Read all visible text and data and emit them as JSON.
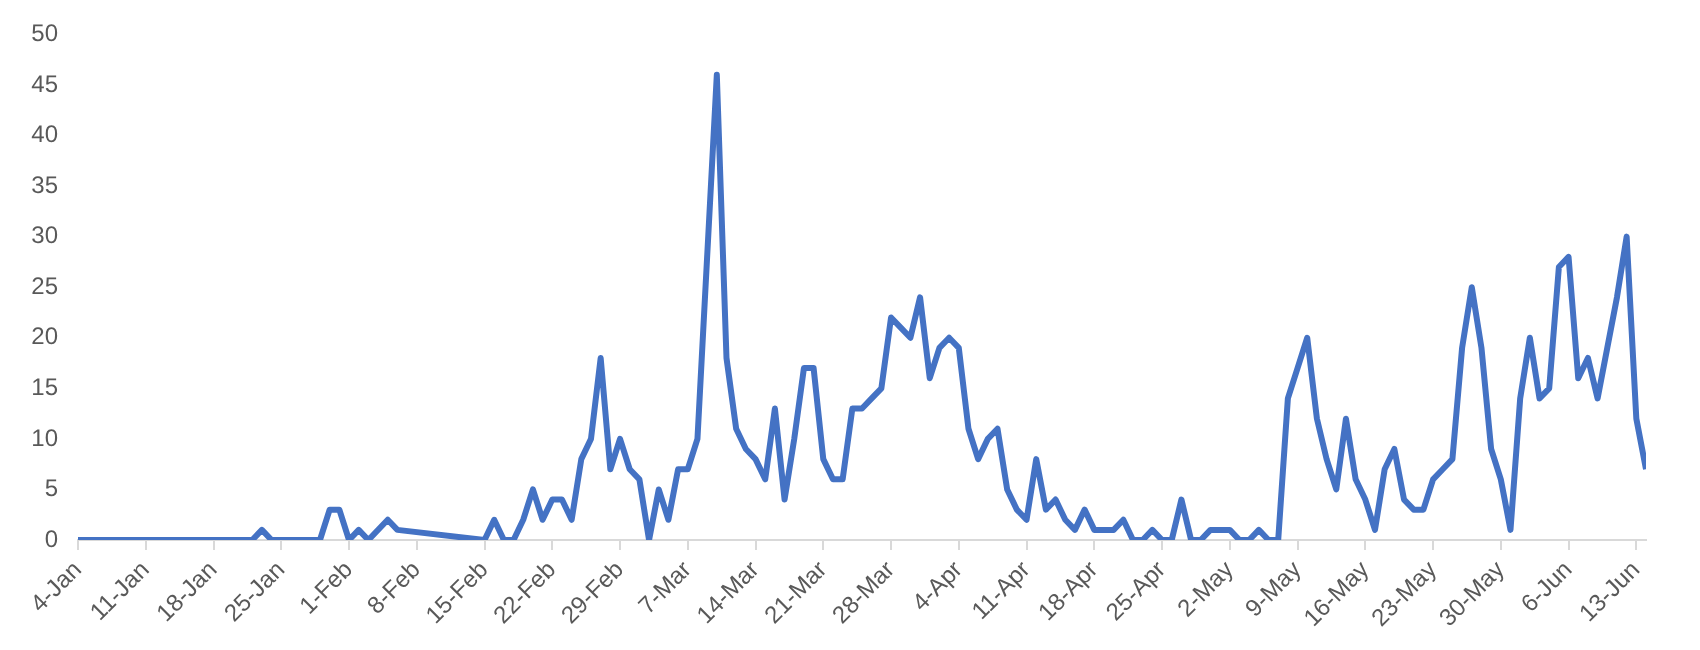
{
  "chart_data": {
    "type": "line",
    "color": "#4472c4",
    "marker": "none",
    "line_style": "solid",
    "grid": false,
    "legend": false,
    "x": [
      "--01-04",
      "--01-22",
      "--01-23",
      "--01-24",
      "--01-29",
      "--01-30",
      "--01-31",
      "--02-01",
      "--02-02",
      "--02-03",
      "--02-05",
      "--02-06",
      "--02-15",
      "--02-16",
      "--02-17",
      "--02-18",
      "--02-19",
      "--02-20",
      "--02-21",
      "--02-22",
      "--02-23",
      "--02-24",
      "--02-25",
      "--02-26",
      "--02-27",
      "--02-28",
      "--02-29",
      "--03-01",
      "--03-02",
      "--03-03",
      "--03-04",
      "--03-05",
      "--03-06",
      "--03-07",
      "--03-08",
      "--03-10",
      "--03-11",
      "--03-12",
      "--03-13",
      "--03-14",
      "--03-15",
      "--03-16",
      "--03-17",
      "--03-18",
      "--03-19",
      "--03-20",
      "--03-21",
      "--03-22",
      "--03-23",
      "--03-24",
      "--03-25",
      "--03-26",
      "--03-27",
      "--03-28",
      "--03-29",
      "--03-30",
      "--03-31",
      "--04-01",
      "--04-02",
      "--04-03",
      "--04-04",
      "--04-05",
      "--04-06",
      "--04-07",
      "--04-08",
      "--04-09",
      "--04-10",
      "--04-11",
      "--04-12",
      "--04-13",
      "--04-14",
      "--04-15",
      "--04-16",
      "--04-17",
      "--04-18",
      "--04-19",
      "--04-20",
      "--04-21",
      "--04-22",
      "--04-23",
      "--04-24",
      "--04-25",
      "--04-26",
      "--04-27",
      "--04-28",
      "--04-29",
      "--04-30",
      "--05-01",
      "--05-02",
      "--05-03",
      "--05-04",
      "--05-05",
      "--05-06",
      "--05-07",
      "--05-08",
      "--05-09",
      "--05-10",
      "--05-11",
      "--05-12",
      "--05-13",
      "--05-14",
      "--05-15",
      "--05-16",
      "--05-17",
      "--05-18",
      "--05-19",
      "--05-20",
      "--05-21",
      "--05-22",
      "--05-23",
      "--05-24",
      "--05-25",
      "--05-26",
      "--05-27",
      "--05-28",
      "--05-29",
      "--05-30",
      "--05-31",
      "--06-01",
      "--06-02",
      "--06-03",
      "--06-04",
      "--06-05",
      "--06-06",
      "--06-07",
      "--06-08",
      "--06-09",
      "--06-10",
      "--06-11",
      "--06-12",
      "--06-13",
      "--06-14"
    ],
    "values": [
      0,
      0,
      1,
      0,
      0,
      3,
      3,
      0,
      1,
      0,
      2,
      1,
      0,
      2,
      0,
      0,
      2,
      5,
      2,
      4,
      4,
      2,
      8,
      10,
      18,
      7,
      10,
      7,
      6,
      0,
      5,
      2,
      7,
      7,
      10,
      46,
      18,
      11,
      9,
      8,
      6,
      13,
      4,
      10,
      17,
      17,
      8,
      6,
      6,
      13,
      13,
      14,
      15,
      22,
      21,
      20,
      24,
      16,
      19,
      20,
      19,
      11,
      8,
      10,
      11,
      5,
      3,
      2,
      8,
      3,
      4,
      2,
      1,
      3,
      1,
      1,
      1,
      2,
      0,
      0,
      1,
      0,
      0,
      4,
      0,
      0,
      1,
      1,
      1,
      0,
      0,
      1,
      0,
      0,
      14,
      17,
      20,
      12,
      8,
      5,
      12,
      6,
      4,
      1,
      7,
      9,
      4,
      3,
      3,
      6,
      7,
      8,
      19,
      25,
      19,
      9,
      6,
      1,
      14,
      20,
      14,
      15,
      27,
      28,
      16,
      18,
      14,
      19,
      24,
      30,
      12,
      7
    ],
    "xlim": [
      "--01-04",
      "--06-14"
    ],
    "xticks": [
      {
        "value": "--01-04",
        "label": "4-Jan"
      },
      {
        "value": "--01-11",
        "label": "11-Jan"
      },
      {
        "value": "--01-18",
        "label": "18-Jan"
      },
      {
        "value": "--01-25",
        "label": "25-Jan"
      },
      {
        "value": "--02-01",
        "label": "1-Feb"
      },
      {
        "value": "--02-08",
        "label": "8-Feb"
      },
      {
        "value": "--02-15",
        "label": "15-Feb"
      },
      {
        "value": "--02-22",
        "label": "22-Feb"
      },
      {
        "value": "--02-29",
        "label": "29-Feb"
      },
      {
        "value": "--03-07",
        "label": "7-Mar"
      },
      {
        "value": "--03-14",
        "label": "14-Mar"
      },
      {
        "value": "--03-21",
        "label": "21-Mar"
      },
      {
        "value": "--03-28",
        "label": "28-Mar"
      },
      {
        "value": "--04-04",
        "label": "4-Apr"
      },
      {
        "value": "--04-11",
        "label": "11-Apr"
      },
      {
        "value": "--04-18",
        "label": "18-Apr"
      },
      {
        "value": "--04-25",
        "label": "25-Apr"
      },
      {
        "value": "--05-02",
        "label": "2-May"
      },
      {
        "value": "--05-09",
        "label": "9-May"
      },
      {
        "value": "--05-16",
        "label": "16-May"
      },
      {
        "value": "--05-23",
        "label": "23-May"
      },
      {
        "value": "--05-30",
        "label": "30-May"
      },
      {
        "value": "--06-06",
        "label": "6-Jun"
      },
      {
        "value": "--06-13",
        "label": "13-Jun"
      }
    ],
    "ylim": [
      0,
      50
    ],
    "yticks": [
      0,
      5,
      10,
      15,
      20,
      25,
      30,
      35,
      40,
      45,
      50
    ]
  }
}
